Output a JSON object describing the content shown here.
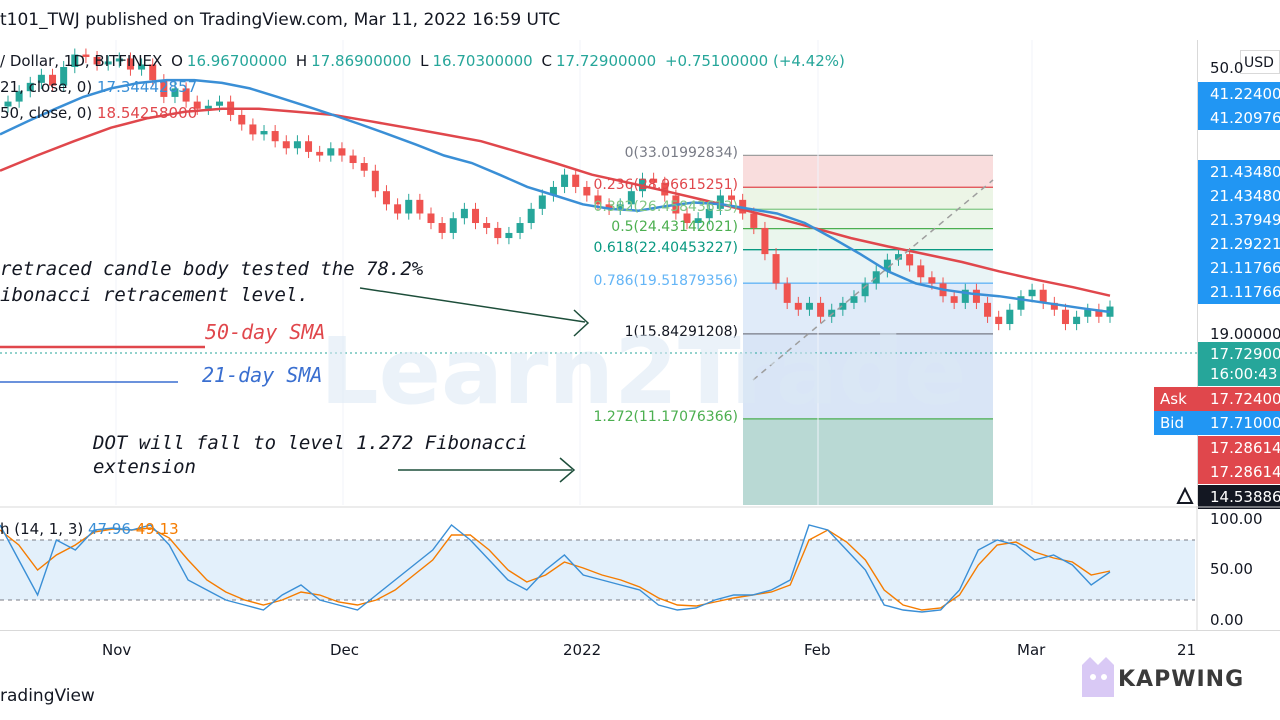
{
  "header": {
    "title": "t101_TWJ published on TradingView.com, Mar 11, 2022 16:59 UTC"
  },
  "ohlc": {
    "symbol": "/ Dollar, 1D, BITFINEX",
    "o_label": "O",
    "o_value": "16.96700000",
    "h_label": "H",
    "h_value": "17.86900000",
    "l_label": "L",
    "l_value": "16.70300000",
    "c_label": "C",
    "c_value": "17.72900000",
    "change": "+0.75100000 (+4.42%)"
  },
  "sma21": {
    "params": "21, close, 0)",
    "value": "17.34442857"
  },
  "sma50": {
    "params": "50, close, 0)",
    "value": "18.54258000"
  },
  "annotations": {
    "retrace_line1": "retraced candle body tested the 78.2%",
    "retrace_line2": "ibonacci retracement level.",
    "fall_line1": "DOT will fall to level 1.272 Fibonacci",
    "fall_line2": "extension"
  },
  "legend": {
    "sma50_label": "50-day SMA",
    "sma21_label": "21-day SMA",
    "sma50_color": "#e0474c",
    "sma21_color": "#3a8fd6"
  },
  "fibonacci": {
    "levels": [
      {
        "ratio": 0,
        "label": "0(33.01992834)",
        "price": 33.01992834
      },
      {
        "ratio": 0.236,
        "label": "0.236(28.96615251)",
        "price": 28.96615251
      },
      {
        "ratio": 0.382,
        "label": "0.382(26.45843613)",
        "price": 26.45843613
      },
      {
        "ratio": 0.5,
        "label": "0.5(24.43142021)",
        "price": 24.43142021
      },
      {
        "ratio": 0.618,
        "label": "0.618(22.40453227)",
        "price": 22.40453227
      },
      {
        "ratio": 0.786,
        "label": "0.786(19.51879356)",
        "price": 19.51879356
      },
      {
        "ratio": 1,
        "label": "1(15.84291208)",
        "price": 15.84291208
      },
      {
        "ratio": 1.272,
        "label": "1.272(11.17076366)",
        "price": 11.17076366
      }
    ]
  },
  "price_axis": {
    "labels": [
      {
        "text": "USD",
        "kind": "unit"
      },
      {
        "text": "50.0",
        "kind": "plain"
      },
      {
        "text": "41.22400",
        "bg": "#2196f3"
      },
      {
        "text": "41.20976",
        "bg": "#2196f3"
      },
      {
        "text": "21.43480",
        "bg": "#2196f3"
      },
      {
        "text": "21.43480",
        "bg": "#2196f3"
      },
      {
        "text": "21.37949",
        "bg": "#2196f3"
      },
      {
        "text": "21.29221",
        "bg": "#2196f3"
      },
      {
        "text": "21.11766",
        "bg": "#2196f3"
      },
      {
        "text": "21.11766",
        "bg": "#2196f3"
      },
      {
        "text": "19.00000",
        "kind": "plain"
      },
      {
        "text": "17.72900",
        "bg": "#26a69a"
      },
      {
        "text": "16:00:43",
        "bg": "#26a69a"
      },
      {
        "text": "17.72400",
        "bg": "#e0474c"
      },
      {
        "text": "17.71000",
        "bg": "#2196f3"
      },
      {
        "text": "17.28614",
        "bg": "#e0474c"
      },
      {
        "text": "17.28614",
        "bg": "#e0474c"
      },
      {
        "text": "14.53886",
        "bg": "#131722"
      }
    ],
    "ask_label": "Ask",
    "bid_label": "Bid"
  },
  "oscillator": {
    "label": "h (14, 1, 3)",
    "k_value": "47.96",
    "d_value": "49.13",
    "k_color": "#3a8fd6",
    "d_color": "#f57c00",
    "axis_labels": [
      "100.00",
      "50.00",
      "0.00"
    ]
  },
  "time_axis": {
    "labels": [
      "Nov",
      "Dec",
      "2022",
      "Feb",
      "Mar",
      "21"
    ]
  },
  "footer": {
    "brand": "radingView"
  },
  "watermark": {
    "text": "Learn2Trade"
  },
  "kapwing": {
    "text": "KAPWING"
  },
  "chart_data": {
    "type": "candlestick",
    "title": "",
    "price_range": [
      8,
      52
    ],
    "colors": {
      "up": "#26a69a",
      "down": "#ef5350",
      "sma21": "#3a8fd6",
      "sma50": "#e0474c"
    },
    "candles_close": [
      41.2,
      43.0,
      44.5,
      46.0,
      44.0,
      47.5,
      50.0,
      49.5,
      48.0,
      48.6,
      49.2,
      47.0,
      48.0,
      45.0,
      42.0,
      43.5,
      41.2,
      40.0,
      40.5,
      41.2,
      39.0,
      37.5,
      36.0,
      36.5,
      35.0,
      34.0,
      35.0,
      33.5,
      33.0,
      34.0,
      33.0,
      32.0,
      31.0,
      28.5,
      27.0,
      26.0,
      27.5,
      26.0,
      25.0,
      24.0,
      25.5,
      26.5,
      25.0,
      24.5,
      23.5,
      24.0,
      25.0,
      26.5,
      28.0,
      29.0,
      30.5,
      29.0,
      28.0,
      27.0,
      26.5,
      27.0,
      28.5,
      30.0,
      29.5,
      28.0,
      26.0,
      25.0,
      25.5,
      26.5,
      28.0,
      27.5,
      26.0,
      24.5,
      22.0,
      19.5,
      18.0,
      17.5,
      18.0,
      17.0,
      17.5,
      18.0,
      18.5,
      19.5,
      20.5,
      21.5,
      22.0,
      21.0,
      20.0,
      19.5,
      18.5,
      18.0,
      19.0,
      18.0,
      17.0,
      16.5,
      17.5,
      18.5,
      19.0,
      18.0,
      17.5,
      16.5,
      17.0,
      17.5,
      17.0,
      17.73
    ],
    "sma21": [
      36.0,
      38.0,
      40.0,
      42.0,
      43.5,
      44.5,
      45.0,
      45.0,
      44.5,
      43.5,
      42.0,
      40.5,
      39.0,
      37.5,
      36.0,
      34.5,
      33.0,
      32.0,
      30.5,
      29.0,
      28.0,
      27.0,
      26.5,
      26.3,
      26.8,
      27.2,
      27.0,
      26.5,
      26.0,
      25.0,
      23.5,
      22.0,
      20.5,
      19.5,
      19.0,
      18.7,
      18.5,
      18.2,
      17.9,
      17.6,
      17.34
    ],
    "sma50": [
      31.0,
      33.0,
      35.0,
      37.0,
      38.5,
      39.5,
      40.0,
      40.0,
      39.5,
      39.0,
      38.0,
      37.0,
      36.0,
      35.0,
      33.5,
      32.0,
      30.5,
      29.5,
      28.5,
      27.5,
      26.5,
      25.5,
      24.5,
      23.5,
      22.7,
      22.0,
      21.3,
      20.5,
      19.8,
      19.2,
      18.54
    ],
    "stoch_k": [
      95,
      60,
      25,
      80,
      70,
      90,
      92,
      90,
      95,
      75,
      40,
      30,
      20,
      15,
      10,
      25,
      35,
      20,
      15,
      10,
      25,
      40,
      55,
      70,
      95,
      80,
      60,
      40,
      30,
      50,
      65,
      45,
      40,
      35,
      30,
      15,
      10,
      12,
      20,
      25,
      25,
      30,
      40,
      95,
      90,
      70,
      50,
      15,
      10,
      8,
      10,
      30,
      70,
      80,
      75,
      60,
      65,
      55,
      35,
      48
    ],
    "stoch_d": [
      90,
      75,
      50,
      65,
      75,
      88,
      91,
      90,
      92,
      82,
      60,
      40,
      28,
      20,
      15,
      20,
      28,
      25,
      18,
      15,
      20,
      30,
      45,
      60,
      85,
      85,
      70,
      50,
      38,
      45,
      58,
      52,
      45,
      40,
      33,
      22,
      15,
      14,
      18,
      22,
      25,
      28,
      35,
      80,
      90,
      78,
      60,
      30,
      15,
      10,
      12,
      25,
      55,
      75,
      78,
      68,
      62,
      58,
      45,
      49
    ],
    "stoch_range": [
      0,
      100
    ]
  }
}
